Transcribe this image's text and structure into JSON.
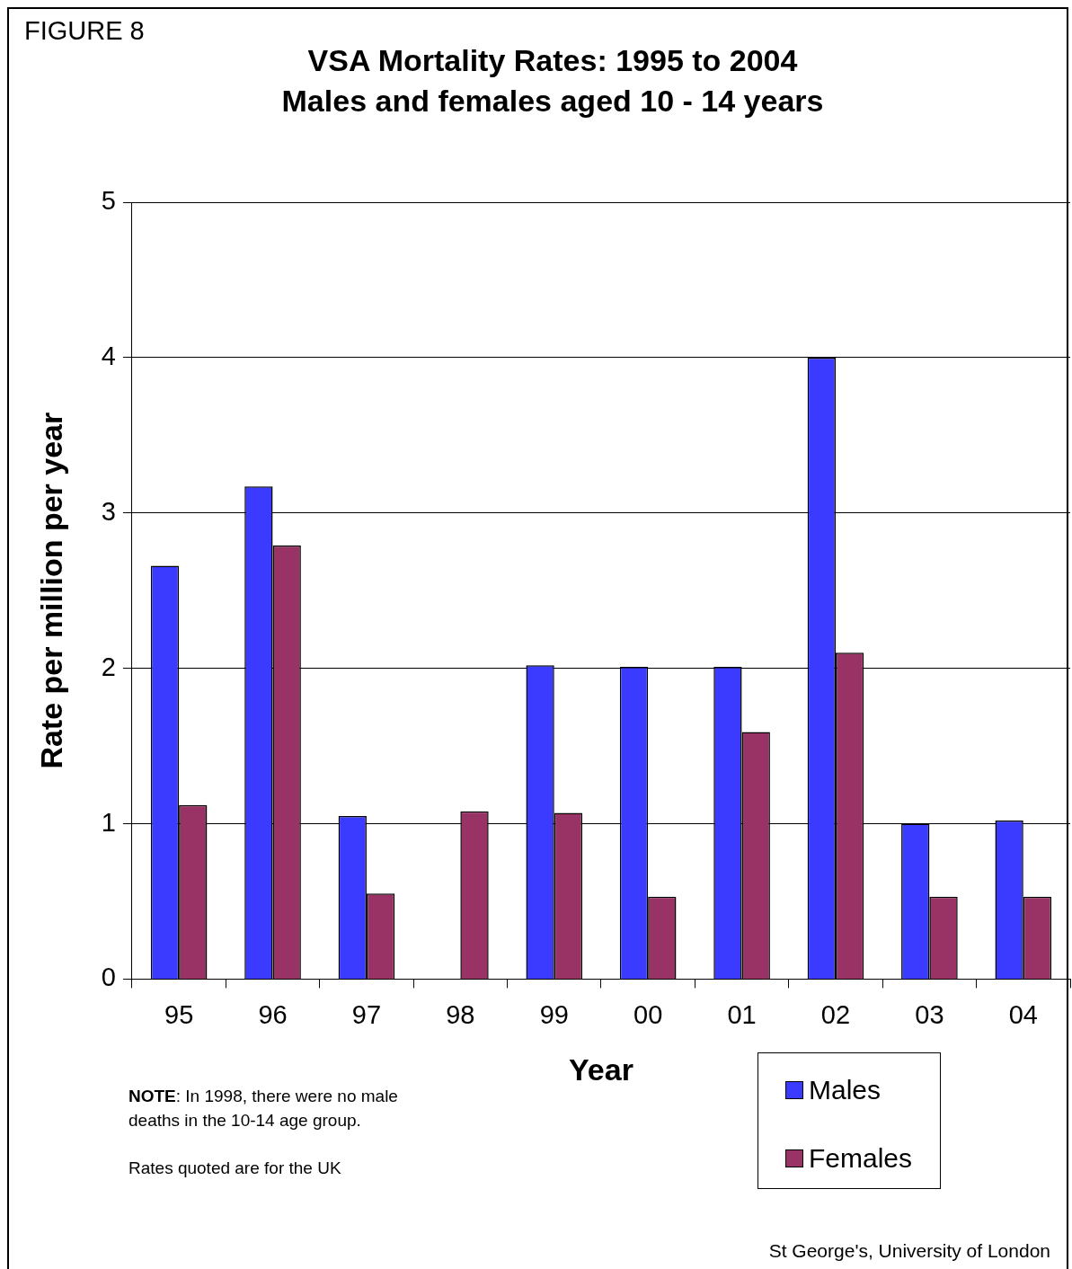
{
  "chart_data": {
    "type": "bar",
    "title": "VSA Mortality Rates: 1995 to 2004",
    "subtitle": "Males and females aged 10 - 14 years",
    "xlabel": "Year",
    "ylabel": "Rate per million per year",
    "categories": [
      "95",
      "96",
      "97",
      "98",
      "99",
      "00",
      "01",
      "02",
      "03",
      "04"
    ],
    "series": [
      {
        "name": "Males",
        "color": "#3b3bff",
        "values": [
          2.66,
          3.17,
          1.05,
          0,
          2.02,
          2.01,
          2.01,
          4.0,
          1.0,
          1.02
        ]
      },
      {
        "name": "Females",
        "color": "#993366",
        "values": [
          1.12,
          2.79,
          0.55,
          1.08,
          1.07,
          0.53,
          1.59,
          2.1,
          0.53,
          0.53
        ]
      }
    ],
    "ylim": [
      0,
      5
    ],
    "yticks": [
      0,
      1,
      2,
      3,
      4,
      5
    ],
    "grid": "y",
    "legend": "bottom right",
    "annotations": [
      "FIGURE  8",
      "NOTE: In 1998, there were no male deaths in the 10-14 age group.",
      "Rates quoted are for the UK",
      "St George's, University of London"
    ]
  }
}
